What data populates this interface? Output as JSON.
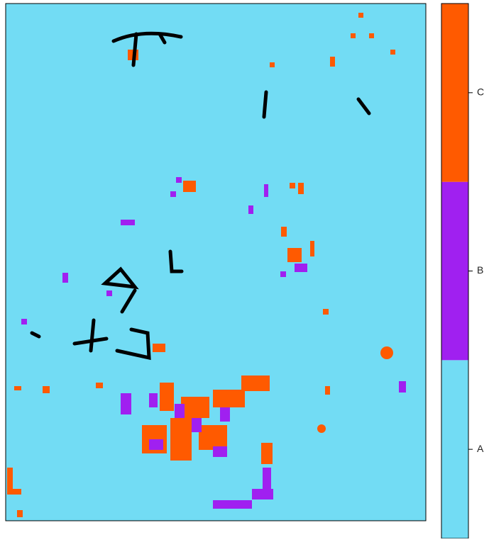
{
  "legend": {
    "classes": [
      {
        "label": "A",
        "color": "#72dcf4"
      },
      {
        "label": "B",
        "color": "#a020f0"
      },
      {
        "label": "C",
        "color": "#ff5a00"
      }
    ]
  }
}
